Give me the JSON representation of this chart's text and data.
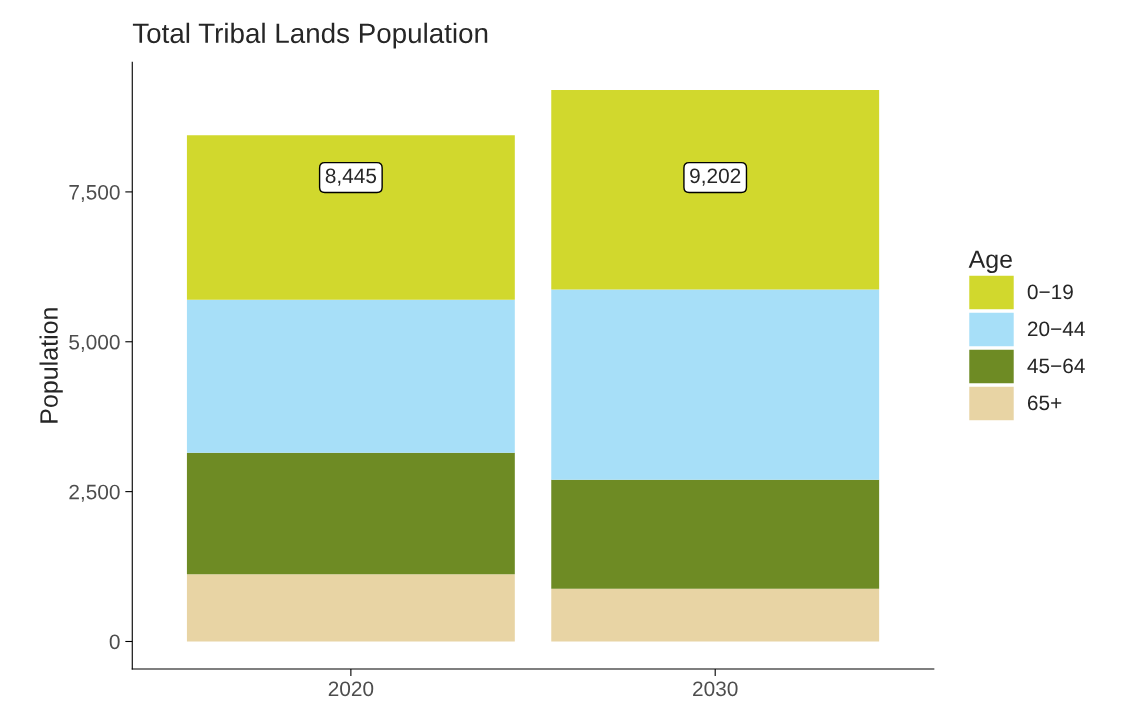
{
  "chart_data": {
    "type": "bar",
    "title": "Total Tribal Lands Population",
    "ylabel": "Population",
    "legend_title": "Age",
    "categories": [
      "2020",
      "2030"
    ],
    "stacked": true,
    "series": [
      {
        "name": "65+",
        "color": "#e8d4a4",
        "values": [
          1120,
          880
        ]
      },
      {
        "name": "45−64",
        "color": "#6e8b24",
        "values": [
          2030,
          1820
        ]
      },
      {
        "name": "20−44",
        "color": "#a7dff8",
        "values": [
          2550,
          3170
        ]
      },
      {
        "name": "0−19",
        "color": "#d1d82d",
        "values": [
          2745,
          3332
        ]
      }
    ],
    "totals": [
      "8,445",
      "9,202"
    ],
    "ylim": [
      -460,
      9662
    ],
    "yticks": [
      {
        "value": 0,
        "label": "0"
      },
      {
        "value": 2500,
        "label": "2,500"
      },
      {
        "value": 5000,
        "label": "5,000"
      },
      {
        "value": 7500,
        "label": "7,500"
      }
    ],
    "grid": false,
    "legend": "right"
  }
}
